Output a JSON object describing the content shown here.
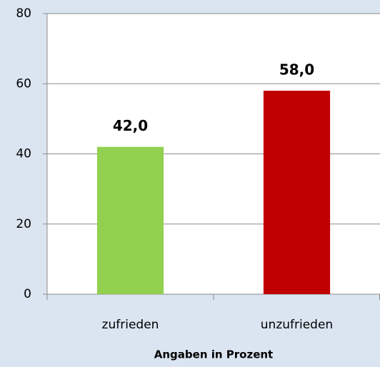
{
  "chart_data": {
    "type": "bar",
    "categories": [
      "zufrieden",
      "unzufrieden"
    ],
    "values": [
      42.0,
      58.0
    ],
    "value_labels": [
      "42,0",
      "58,0"
    ],
    "colors": [
      "#92d050",
      "#c00000"
    ],
    "x_label": "Angaben in Prozent",
    "ylim": [
      0,
      80
    ],
    "yticks": [
      0,
      20,
      40,
      60,
      80
    ],
    "grid": true
  }
}
